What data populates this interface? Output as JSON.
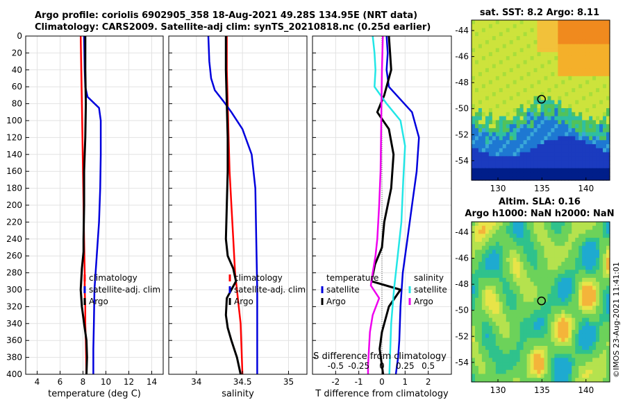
{
  "header": {
    "line1": "Argo profile: coriolis 6902905_358 18-Aug-2021 49.28S 134.95E (NRT data)",
    "line2": "Climatology: CARS2009. Satellite-adj clim: synTS_20210818.nc (0.25d earlier)"
  },
  "stamp": "©IMOS 23-Aug-2021 11:41:01",
  "colors": {
    "climatology": "#ff0000",
    "satellite": "#0000dd",
    "argo": "#000000",
    "sat_salinity": "#22e6e6",
    "argo_salinity": "#ee00ee"
  },
  "chart_data": [
    {
      "id": "temperature",
      "type": "line",
      "xlabel": "temperature (deg C)",
      "ylabel": "",
      "xlim": [
        3,
        15
      ],
      "ylim": [
        400,
        0
      ],
      "xticks": [
        4,
        6,
        8,
        10,
        12,
        14
      ],
      "yticks": [
        0,
        20,
        40,
        60,
        80,
        100,
        120,
        140,
        160,
        180,
        200,
        220,
        240,
        260,
        280,
        300,
        320,
        340,
        360,
        380,
        400
      ],
      "legend": [
        "climatology",
        "satellite-adj. clim",
        "Argo"
      ],
      "series": [
        {
          "name": "climatology",
          "color": "#ff0000",
          "x": [
            7.8,
            7.85,
            7.9,
            7.95,
            8.0,
            8.05,
            8.1,
            8.15,
            8.15,
            8.2,
            8.2,
            8.25,
            8.3
          ],
          "y": [
            0,
            40,
            80,
            120,
            160,
            200,
            240,
            280,
            300,
            320,
            340,
            360,
            400
          ]
        },
        {
          "name": "satellite-adj. clim",
          "color": "#0000dd",
          "x": [
            8.1,
            8.15,
            8.2,
            8.4,
            9.4,
            9.55,
            9.55,
            9.5,
            9.4,
            9.2,
            9.0,
            8.95,
            8.9,
            8.9
          ],
          "y": [
            0,
            40,
            60,
            72,
            85,
            100,
            140,
            180,
            220,
            260,
            300,
            340,
            370,
            400
          ]
        },
        {
          "name": "Argo",
          "color": "#000000",
          "x": [
            8.2,
            8.2,
            8.25,
            8.2,
            8.1,
            8.1,
            8.05,
            8.05,
            7.9,
            7.8,
            7.9,
            8.1,
            8.3,
            8.35,
            8.3
          ],
          "y": [
            0,
            40,
            80,
            120,
            160,
            200,
            240,
            255,
            275,
            300,
            320,
            340,
            360,
            380,
            400
          ]
        }
      ]
    },
    {
      "id": "salinity",
      "type": "line",
      "xlabel": "salinity",
      "ylabel": "",
      "xlim": [
        33.7,
        35.2
      ],
      "ylim": [
        400,
        0
      ],
      "xticks": [
        34,
        34.5,
        35
      ],
      "xticklabels": [
        "34",
        "34.5",
        "35"
      ],
      "legend": [
        "climatology",
        "satellite-adj. clim",
        "Argo"
      ],
      "series": [
        {
          "name": "climatology",
          "color": "#ff0000",
          "x": [
            34.33,
            34.33,
            34.34,
            34.35,
            34.36,
            34.38,
            34.4,
            34.42,
            34.44,
            34.46,
            34.48,
            34.49,
            34.5
          ],
          "y": [
            0,
            40,
            80,
            120,
            160,
            200,
            240,
            280,
            300,
            320,
            340,
            370,
            400
          ]
        },
        {
          "name": "satellite-adj. clim",
          "color": "#0000dd",
          "x": [
            34.13,
            34.14,
            34.16,
            34.2,
            34.3,
            34.38,
            34.5,
            34.6,
            34.64,
            34.65,
            34.66,
            34.66,
            34.66
          ],
          "y": [
            0,
            30,
            50,
            64,
            78,
            90,
            110,
            140,
            180,
            240,
            300,
            360,
            400
          ]
        },
        {
          "name": "Argo",
          "color": "#000000",
          "x": [
            34.32,
            34.32,
            34.33,
            34.34,
            34.34,
            34.33,
            34.32,
            34.34,
            34.4,
            34.43,
            34.33,
            34.32,
            34.34,
            34.38,
            34.44,
            34.48
          ],
          "y": [
            0,
            40,
            80,
            120,
            160,
            200,
            240,
            260,
            275,
            290,
            310,
            330,
            345,
            360,
            380,
            400
          ]
        }
      ]
    },
    {
      "id": "difference",
      "type": "line",
      "xlabel": "T difference from climatology",
      "toplabel": "S difference from climatology",
      "xlim": [
        -3,
        3
      ],
      "ylim": [
        400,
        0
      ],
      "xticks": [
        -2,
        -1,
        0,
        1,
        2
      ],
      "xticklabels": [
        "-2",
        "-1",
        "0",
        "1",
        "2"
      ],
      "s_ticklabels": [
        "-0.5",
        "-0.25",
        "0",
        "0.25",
        "0.5"
      ],
      "legend_title_t": "temperature",
      "legend_title_s": "salinity",
      "legend_t": [
        "satellite",
        "Argo"
      ],
      "legend_s": [
        "satellite",
        "Argo"
      ],
      "series": [
        {
          "name": "temperature satellite",
          "color": "#0000dd",
          "x": [
            0.2,
            0.25,
            0.2,
            0.3,
            0.7,
            1.3,
            1.6,
            1.5,
            1.3,
            1.1,
            0.9,
            0.8,
            0.75,
            0.7,
            0.6
          ],
          "y": [
            0,
            20,
            40,
            60,
            72,
            90,
            120,
            160,
            200,
            240,
            280,
            320,
            360,
            380,
            400
          ]
        },
        {
          "name": "temperature Argo",
          "color": "#000000",
          "x": [
            0.3,
            0.35,
            0.4,
            0.1,
            -0.2,
            0.3,
            0.5,
            0.4,
            0.1,
            0.0,
            -0.3,
            -0.45,
            0.8,
            0.3,
            0.0,
            -0.1,
            0.0,
            0.05
          ],
          "y": [
            0,
            20,
            40,
            70,
            90,
            110,
            140,
            180,
            220,
            250,
            270,
            290,
            300,
            320,
            350,
            370,
            390,
            400
          ]
        },
        {
          "name": "salinity satellite",
          "color": "#22e6e6",
          "x": [
            -0.1,
            -0.08,
            -0.07,
            -0.08,
            0.05,
            0.2,
            0.25,
            0.23,
            0.21,
            0.17,
            0.13,
            0.1,
            0.09,
            0.08
          ],
          "y": [
            0,
            20,
            40,
            60,
            80,
            100,
            130,
            170,
            220,
            260,
            300,
            340,
            370,
            400
          ]
        },
        {
          "name": "salinity Argo",
          "color": "#ee00ee",
          "x": [
            0.01,
            0.0,
            -0.005,
            -0.01,
            -0.015,
            -0.03,
            -0.05,
            -0.07,
            -0.1,
            -0.12,
            -0.03,
            -0.1,
            -0.13,
            -0.14,
            -0.15,
            -0.15
          ],
          "y": [
            0,
            40,
            80,
            120,
            160,
            200,
            240,
            260,
            280,
            295,
            310,
            330,
            350,
            370,
            390,
            400
          ]
        }
      ]
    },
    {
      "id": "sst_map",
      "type": "heatmap",
      "title": "sat. SST: 8.2 Argo: 8.11",
      "xlim": [
        127,
        142.7
      ],
      "ylim": [
        -55.5,
        -43.2
      ],
      "xticks": [
        130,
        135,
        140
      ],
      "yticks": [
        -44,
        -46,
        -48,
        -50,
        -52,
        -54
      ],
      "marker": {
        "lon": 134.95,
        "lat": -49.28
      }
    },
    {
      "id": "sla_map",
      "type": "heatmap",
      "title": "Altim. SLA: 0.16",
      "subtitle": "Argo h1000: NaN h2000: NaN",
      "xlim": [
        127,
        142.7
      ],
      "ylim": [
        -55.5,
        -43.2
      ],
      "xticks": [
        130,
        135,
        140
      ],
      "yticks": [
        -44,
        -46,
        -48,
        -50,
        -52,
        -54
      ],
      "marker": {
        "lon": 134.95,
        "lat": -49.28
      }
    }
  ]
}
